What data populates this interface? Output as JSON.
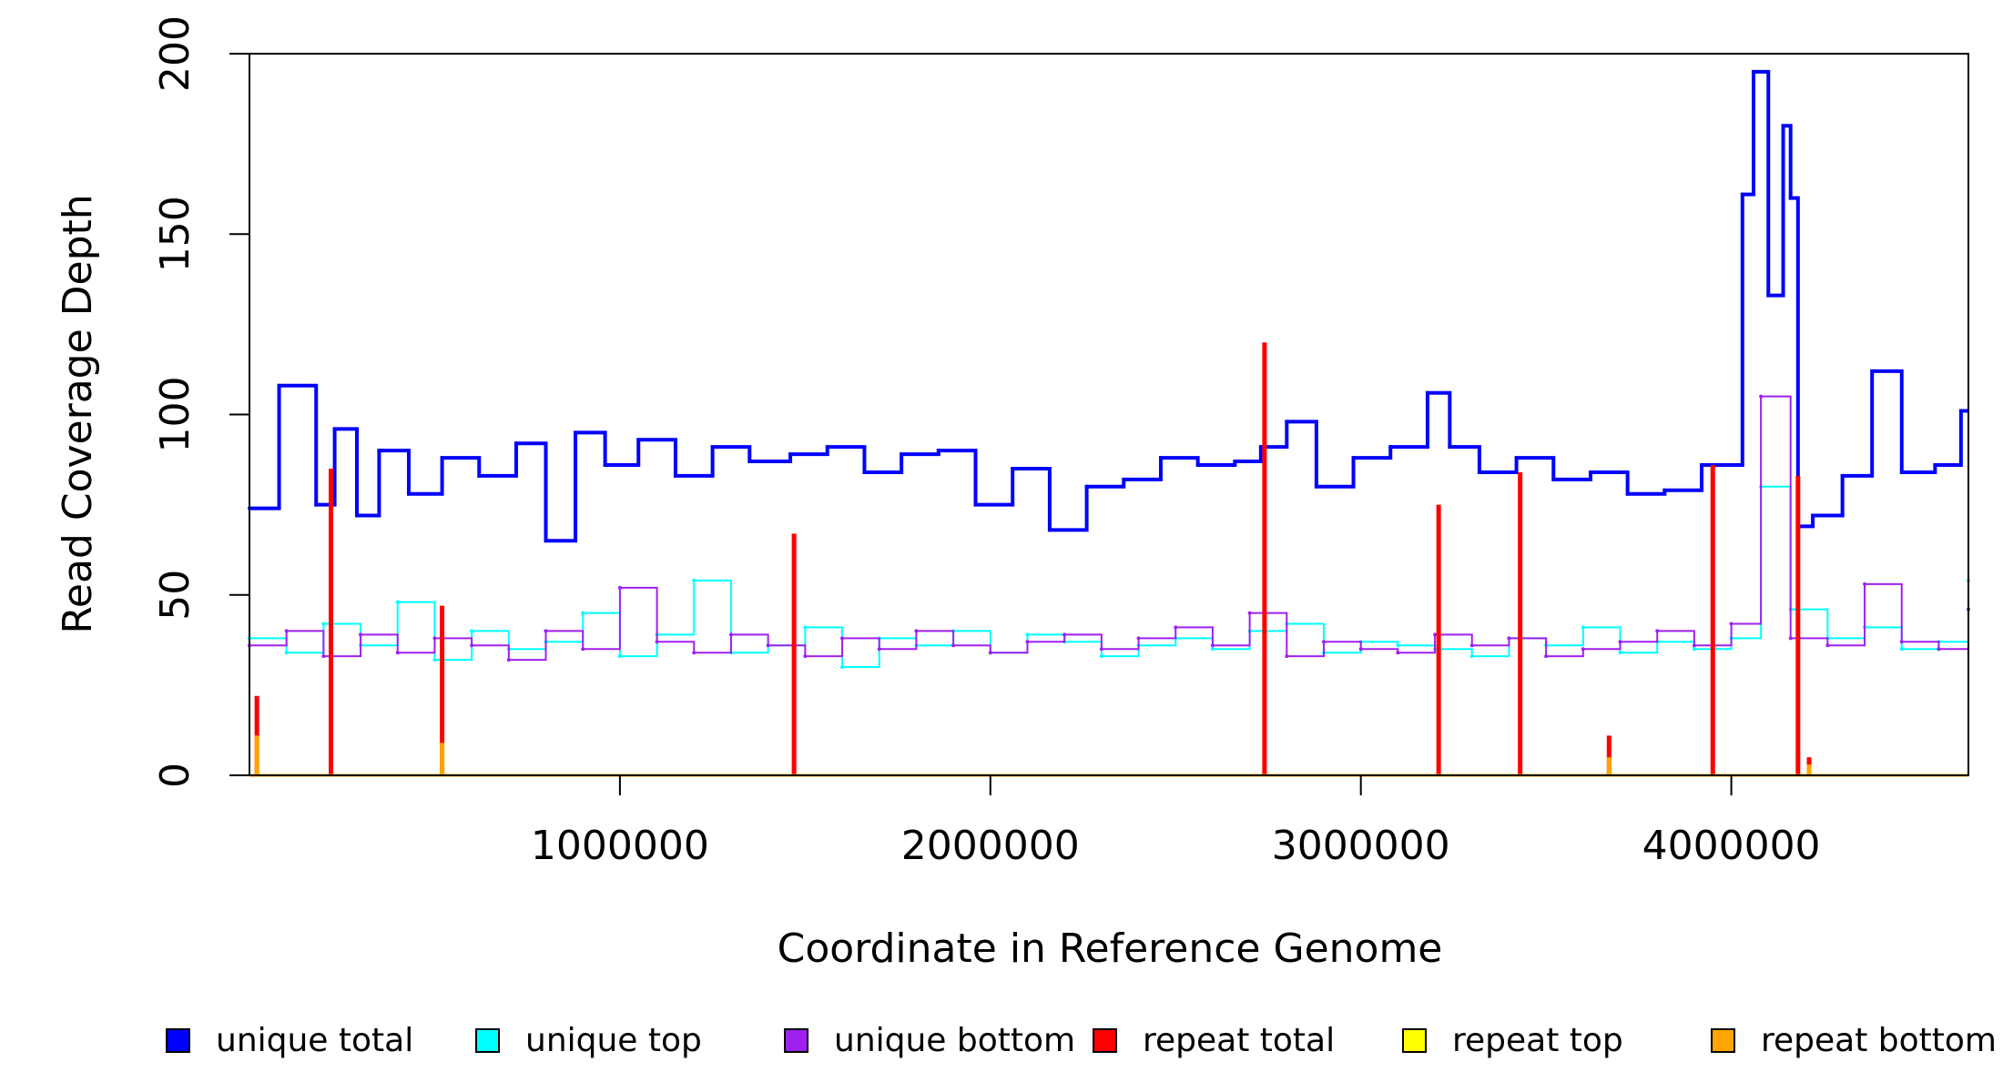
{
  "chart_data": {
    "type": "line",
    "title": "",
    "xlabel": "Coordinate in Reference Genome",
    "ylabel": "Read Coverage Depth",
    "xlim": [
      0,
      4640000
    ],
    "ylim": [
      0,
      200
    ],
    "x_ticks": [
      "1000000",
      "2000000",
      "3000000",
      "4000000"
    ],
    "y_ticks": [
      "0",
      "50",
      "100",
      "150",
      "200"
    ],
    "grid": false,
    "legend_position": "bottom",
    "series": [
      {
        "name": "unique total",
        "color": "#0000ff",
        "x": [
          0,
          80000,
          180000,
          230000,
          290000,
          350000,
          430000,
          520000,
          620000,
          720000,
          800000,
          880000,
          960000,
          1050000,
          1150000,
          1250000,
          1350000,
          1460000,
          1560000,
          1660000,
          1760000,
          1860000,
          1960000,
          2060000,
          2160000,
          2260000,
          2360000,
          2460000,
          2560000,
          2660000,
          2730000,
          2800000,
          2880000,
          2980000,
          3080000,
          3180000,
          3240000,
          3320000,
          3420000,
          3520000,
          3620000,
          3720000,
          3820000,
          3920000,
          4030000,
          4060000,
          4100000,
          4140000,
          4160000,
          4180000,
          4220000,
          4300000,
          4380000,
          4460000,
          4550000,
          4620000
        ],
        "values": [
          74,
          108,
          75,
          96,
          72,
          90,
          78,
          88,
          83,
          92,
          65,
          95,
          86,
          93,
          83,
          91,
          87,
          89,
          91,
          84,
          89,
          90,
          75,
          85,
          68,
          80,
          82,
          88,
          86,
          87,
          91,
          98,
          80,
          88,
          91,
          106,
          91,
          84,
          88,
          82,
          84,
          78,
          79,
          86,
          161,
          195,
          133,
          180,
          160,
          69,
          72,
          83,
          112,
          84,
          86,
          101
        ]
      },
      {
        "name": "unique top",
        "color": "#00ffff",
        "x": [
          0,
          100000,
          200000,
          300000,
          400000,
          500000,
          600000,
          700000,
          800000,
          900000,
          1000000,
          1100000,
          1200000,
          1300000,
          1400000,
          1500000,
          1600000,
          1700000,
          1800000,
          1900000,
          2000000,
          2100000,
          2200000,
          2300000,
          2400000,
          2500000,
          2600000,
          2700000,
          2800000,
          2900000,
          3000000,
          3100000,
          3200000,
          3300000,
          3400000,
          3500000,
          3600000,
          3700000,
          3800000,
          3900000,
          4000000,
          4080000,
          4160000,
          4260000,
          4360000,
          4460000,
          4560000,
          4640000
        ],
        "values": [
          38,
          34,
          42,
          36,
          48,
          32,
          40,
          35,
          37,
          45,
          33,
          39,
          54,
          34,
          36,
          41,
          30,
          38,
          36,
          40,
          34,
          39,
          37,
          33,
          36,
          38,
          35,
          40,
          42,
          34,
          37,
          36,
          35,
          33,
          38,
          36,
          41,
          34,
          37,
          35,
          38,
          80,
          46,
          38,
          41,
          35,
          37,
          54
        ]
      },
      {
        "name": "unique bottom",
        "color": "#a020f0",
        "x": [
          0,
          100000,
          200000,
          300000,
          400000,
          500000,
          600000,
          700000,
          800000,
          900000,
          1000000,
          1100000,
          1200000,
          1300000,
          1400000,
          1500000,
          1600000,
          1700000,
          1800000,
          1900000,
          2000000,
          2100000,
          2200000,
          2300000,
          2400000,
          2500000,
          2600000,
          2700000,
          2800000,
          2900000,
          3000000,
          3100000,
          3200000,
          3300000,
          3400000,
          3500000,
          3600000,
          3700000,
          3800000,
          3900000,
          4000000,
          4080000,
          4160000,
          4260000,
          4360000,
          4460000,
          4560000,
          4640000
        ],
        "values": [
          36,
          40,
          33,
          39,
          34,
          38,
          36,
          32,
          40,
          35,
          52,
          37,
          34,
          39,
          36,
          33,
          38,
          35,
          40,
          36,
          34,
          37,
          39,
          35,
          38,
          41,
          36,
          45,
          33,
          37,
          35,
          34,
          39,
          36,
          38,
          33,
          35,
          37,
          40,
          36,
          42,
          105,
          38,
          36,
          53,
          37,
          35,
          46
        ]
      },
      {
        "name": "repeat total",
        "color": "#ff0000",
        "x": [
          20000,
          220000,
          520000,
          1470000,
          2740000,
          3210000,
          3430000,
          3670000,
          3950000,
          4180000,
          4210000
        ],
        "values": [
          22,
          85,
          47,
          67,
          120,
          75,
          84,
          11,
          86,
          83,
          5
        ]
      },
      {
        "name": "repeat top",
        "color": "#ffff00",
        "x": [],
        "values": []
      },
      {
        "name": "repeat bottom",
        "color": "#ffa500",
        "x": [
          20000,
          520000,
          3670000,
          4210000
        ],
        "values": [
          11,
          9,
          5,
          3
        ]
      }
    ]
  }
}
